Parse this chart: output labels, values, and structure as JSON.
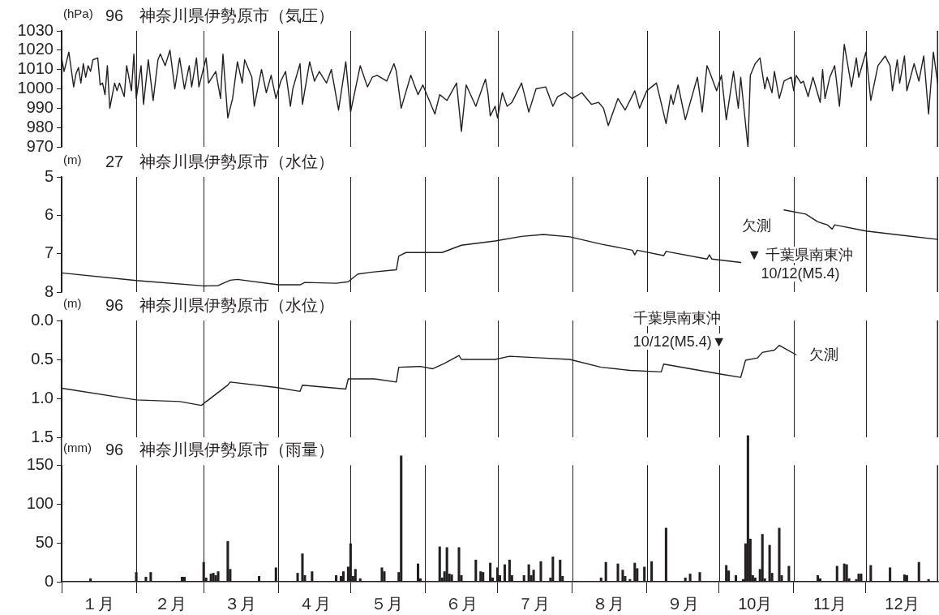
{
  "chart_data": [
    {
      "type": "line",
      "title": "96　神奈川県伊勢原市（気圧）",
      "ylabel": "(hPa)",
      "color": "#231f20",
      "x": [
        "--01-01",
        "--01-02",
        "--01-04",
        "--01-06",
        "--01-07",
        "--01-08",
        "--01-09",
        "--01-10",
        "--01-11",
        "--01-12",
        "--01-13",
        "--01-14",
        "--01-16",
        "--01-17",
        "--01-18",
        "--01-19",
        "--01-20",
        "--01-21",
        "--01-23",
        "--01-24",
        "--01-25",
        "--01-27",
        "--01-28",
        "--01-30",
        "--01-31",
        "--02-01",
        "--02-03",
        "--02-04",
        "--02-06",
        "--02-08",
        "--02-10",
        "--02-11",
        "--02-13",
        "--02-15",
        "--02-17",
        "--02-19",
        "--02-21",
        "--02-23",
        "--02-24",
        "--02-26",
        "--02-27",
        "--03-02",
        "--03-03",
        "--03-06",
        "--03-08",
        "--03-09",
        "--03-11",
        "--03-13",
        "--03-15",
        "--03-17",
        "--03-18",
        "--03-21",
        "--03-22",
        "--03-25",
        "--03-27",
        "--03-29",
        "--03-31",
        "--04-02",
        "--04-04",
        "--04-06",
        "--04-07",
        "--04-10",
        "--04-11",
        "--04-14",
        "--04-16",
        "--04-18",
        "--04-21",
        "--04-23",
        "--04-26",
        "--04-29",
        "--05-01",
        "--05-05",
        "--05-08",
        "--05-10",
        "--05-12",
        "--05-16",
        "--05-19",
        "--05-20",
        "--05-22",
        "--05-26",
        "--05-29",
        "--05-31",
        "--06-05",
        "--06-07",
        "--06-10",
        "--06-14",
        "--06-16",
        "--06-18",
        "--06-22",
        "--06-26",
        "--06-27",
        "--06-28",
        "--06-30",
        "--07-01",
        "--07-03",
        "--07-05",
        "--07-07",
        "--07-11",
        "--07-14",
        "--07-17",
        "--07-21",
        "--07-24",
        "--07-26",
        "--07-29",
        "--08-01",
        "--08-05",
        "--08-09",
        "--08-12",
        "--08-14",
        "--08-16",
        "--08-20",
        "--08-23",
        "--08-27",
        "--08-29",
        "--09-01",
        "--09-05",
        "--09-09",
        "--09-11",
        "--09-12",
        "--09-14",
        "--09-17",
        "--09-22",
        "--09-24",
        "--09-26",
        "--09-27",
        "--09-30",
        "--10-02",
        "--10-04",
        "--10-07",
        "--10-09",
        "--10-10",
        "--10-13",
        "--10-14",
        "--10-16",
        "--10-18",
        "--10-20",
        "--10-21",
        "--10-23",
        "--10-24",
        "--10-26",
        "--10-28",
        "--10-31",
        "--11-01",
        "--11-02",
        "--11-04",
        "--11-05",
        "--11-07",
        "--11-09",
        "--11-12",
        "--11-13",
        "--11-14",
        "--11-16",
        "--11-18",
        "--11-20",
        "--11-22",
        "--11-25",
        "--11-27",
        "--11-28",
        "--12-01",
        "--12-03",
        "--12-06",
        "--12-09",
        "--12-11",
        "--12-12",
        "--12-14",
        "--12-15",
        "--12-17",
        "--12-18",
        "--12-21",
        "--12-23",
        "--12-25",
        "--12-27",
        "--12-29",
        "--12-31"
      ],
      "values": [
        1016,
        1009,
        1019,
        1001,
        1008,
        1011,
        1003,
        1013,
        1006,
        1012,
        1009,
        1015,
        1016,
        1002,
        1003,
        997,
        1012,
        990,
        1003,
        999,
        1003,
        996,
        1012,
        999,
        1018,
        995,
        1012,
        992,
        1015,
        994,
        1015,
        1018,
        1012,
        1020,
        1000,
        1016,
        1000,
        1012,
        1001,
        1016,
        1001,
        1016,
        1003,
        1009,
        995,
        1018,
        985,
        995,
        1014,
        1003,
        1015,
        1006,
        991,
        1010,
        998,
        1007,
        995,
        1004,
        1009,
        991,
        1000,
        1013,
        992,
        1014,
        1004,
        1009,
        1003,
        1010,
        989,
        1014,
        988,
        1012,
        1001,
        1006,
        1007,
        1004,
        1013,
        1009,
        990,
        1007,
        997,
        1002,
        987,
        997,
        994,
        1003,
        978,
        1002,
        991,
        1005,
        998,
        986,
        991,
        985,
        998,
        991,
        993,
        1003,
        988,
        1000,
        1001,
        991,
        996,
        998,
        995,
        998,
        992,
        993,
        990,
        981,
        995,
        989,
        999,
        990,
        999,
        1003,
        982,
        997,
        992,
        1002,
        984,
        1006,
        988,
        1012,
        1009,
        999,
        1007,
        984,
        1009,
        990,
        1006,
        970,
        1007,
        1013,
        1016,
        1000,
        1006,
        998,
        1009,
        995,
        1004,
        1006,
        999,
        1007,
        1003,
        1004,
        996,
        1006,
        993,
        1010,
        995,
        1006,
        1012,
        991,
        1023,
        1001,
        1016,
        1006,
        1019,
        994,
        1012,
        1017,
        1012,
        999,
        1015,
        1003,
        1017,
        999,
        1013,
        1004,
        1017,
        987,
        1019,
        1001
      ],
      "xlim": [
        "--01-01",
        "--12-31"
      ],
      "xticks": [
        {
          "value": "--01-01",
          "label": null
        },
        {
          "value": "--02-01",
          "label": null
        },
        {
          "value": "--03-01",
          "label": null
        },
        {
          "value": "--04-01",
          "label": null
        },
        {
          "value": "--05-01",
          "label": null
        },
        {
          "value": "--06-01",
          "label": null
        },
        {
          "value": "--07-01",
          "label": null
        },
        {
          "value": "--08-01",
          "label": null
        },
        {
          "value": "--09-01",
          "label": null
        },
        {
          "value": "--10-01",
          "label": null
        },
        {
          "value": "--11-01",
          "label": null
        },
        {
          "value": "--12-01",
          "label": null
        }
      ],
      "ylim": [
        970,
        1030
      ],
      "yticks": [
        970,
        980,
        990,
        1000,
        1010,
        1020,
        1030
      ],
      "grid": "x",
      "tick_labels": "y"
    },
    {
      "type": "line",
      "title": "27　神奈川県伊勢原市（水位）",
      "ylabel": "(m)",
      "color": "#231f20",
      "x": [
        "--01-01",
        "--02-01",
        "--03-01",
        "--03-07",
        "--03-12",
        "--03-15",
        "--04-01",
        "--04-10",
        "--04-12",
        "--04-25",
        "--04-30",
        "--05-04",
        "--05-10",
        "--05-20",
        "--05-21",
        "--05-24",
        "--06-08",
        "--06-16",
        "--06-30",
        "--07-11",
        "--07-20",
        "--07-31",
        "--08-13",
        "--08-26",
        "--08-27",
        "--08-28",
        "--09-08",
        "--09-09",
        "--09-26",
        "--09-27",
        "--09-28",
        "--10-10",
        "--10-19",
        "--10-28",
        "--11-06",
        "--11-11",
        "--11-15",
        "--11-17",
        "--11-18",
        "--12-01",
        "--12-16",
        "--12-31"
      ],
      "values": [
        7.5,
        7.7,
        7.84,
        7.83,
        7.69,
        7.67,
        7.81,
        7.81,
        7.75,
        7.77,
        7.73,
        7.53,
        7.48,
        7.42,
        7.06,
        6.97,
        6.97,
        6.78,
        6.67,
        6.55,
        6.5,
        6.56,
        6.75,
        6.91,
        7.03,
        6.91,
        7.05,
        6.94,
        7.14,
        7.03,
        7.14,
        7.23,
        null,
        5.86,
        5.97,
        6.17,
        6.25,
        6.36,
        6.25,
        6.41,
        6.52,
        6.63
      ],
      "xlim": [
        "--01-01",
        "--12-31"
      ],
      "xticks": [
        {
          "value": "--01-01",
          "label": null
        },
        {
          "value": "--02-01",
          "label": null
        },
        {
          "value": "--03-01",
          "label": null
        },
        {
          "value": "--04-01",
          "label": null
        },
        {
          "value": "--05-01",
          "label": null
        },
        {
          "value": "--06-01",
          "label": null
        },
        {
          "value": "--07-01",
          "label": null
        },
        {
          "value": "--08-01",
          "label": null
        },
        {
          "value": "--09-01",
          "label": null
        },
        {
          "value": "--10-01",
          "label": null
        },
        {
          "value": "--11-01",
          "label": null
        },
        {
          "value": "--12-01",
          "label": null
        }
      ],
      "ylim": [
        8,
        5
      ],
      "yticks": [
        5,
        6,
        7,
        8
      ],
      "grid": "x",
      "tick_labels": "y",
      "annotations": [
        "欠測",
        "▼ 千葉県南東沖",
        "10/12(M5.4)"
      ]
    },
    {
      "type": "line",
      "title": "96　神奈川県伊勢原市（水位）",
      "ylabel": "(m)",
      "color": "#231f20",
      "x": [
        "--01-01",
        "--02-01",
        "--02-19",
        "--02-28",
        "--03-11",
        "--03-12",
        "--03-31",
        "--04-10",
        "--04-11",
        "--04-29",
        "--04-30",
        "--05-11",
        "--05-20",
        "--05-21",
        "--05-30",
        "--06-04",
        "--06-09",
        "--06-15",
        "--06-16",
        "--06-30",
        "--07-06",
        "--07-19",
        "--07-31",
        "--08-13",
        "--08-25",
        "--09-07",
        "--09-08",
        "--09-19",
        "--10-02",
        "--10-10",
        "--10-12",
        "--10-17",
        "--10-19",
        "--10-24",
        "--10-26",
        "--10-29",
        "--11-02"
      ],
      "values": [
        0.87,
        1.02,
        1.04,
        1.09,
        0.83,
        0.79,
        0.86,
        0.91,
        0.83,
        0.88,
        0.75,
        0.75,
        0.79,
        0.6,
        0.59,
        0.62,
        0.55,
        0.45,
        0.5,
        0.5,
        0.46,
        0.48,
        0.5,
        0.6,
        0.64,
        0.66,
        0.56,
        0.62,
        0.69,
        0.73,
        0.51,
        0.48,
        0.41,
        0.38,
        0.32,
        0.37,
        0.44
      ],
      "xlim": [
        "--01-01",
        "--12-31"
      ],
      "xticks": [
        {
          "value": "--01-01",
          "label": null
        },
        {
          "value": "--02-01",
          "label": null
        },
        {
          "value": "--03-01",
          "label": null
        },
        {
          "value": "--04-01",
          "label": null
        },
        {
          "value": "--05-01",
          "label": null
        },
        {
          "value": "--06-01",
          "label": null
        },
        {
          "value": "--07-01",
          "label": null
        },
        {
          "value": "--08-01",
          "label": null
        },
        {
          "value": "--09-01",
          "label": null
        },
        {
          "value": "--10-01",
          "label": null
        },
        {
          "value": "--11-01",
          "label": null
        },
        {
          "value": "--12-01",
          "label": null
        }
      ],
      "ylim": [
        1.5,
        0
      ],
      "yticks": [
        {
          "value": 0,
          "label": "0.0"
        },
        {
          "value": 0.5,
          "label": "0.5"
        },
        {
          "value": 1,
          "label": "1.0"
        },
        {
          "value": 1.5,
          "label": "1.5"
        }
      ],
      "grid": "x",
      "tick_labels": "y",
      "annotations": [
        "千葉県南東沖",
        "10/12(M5.4)▼",
        "欠測"
      ]
    },
    {
      "type": "bar",
      "title": "96　神奈川県伊勢原市（雨量）",
      "ylabel": "(mm)",
      "color": "#231f20",
      "x": [
        "--01-13",
        "--02-01",
        "--02-05",
        "--02-07",
        "--02-20",
        "--02-21",
        "--03-01",
        "--03-02",
        "--03-04",
        "--03-05",
        "--03-06",
        "--03-07",
        "--03-11",
        "--03-12",
        "--03-24",
        "--03-31",
        "--04-09",
        "--04-11",
        "--04-12",
        "--04-15",
        "--04-25",
        "--04-27",
        "--04-28",
        "--04-30",
        "--05-01",
        "--05-02",
        "--05-03",
        "--05-05",
        "--05-14",
        "--05-15",
        "--05-21",
        "--05-22",
        "--05-29",
        "--05-30",
        "--06-07",
        "--06-08",
        "--06-09",
        "--06-10",
        "--06-11",
        "--06-12",
        "--06-15",
        "--06-16",
        "--06-22",
        "--06-24",
        "--06-25",
        "--06-28",
        "--06-29",
        "--07-01",
        "--07-02",
        "--07-04",
        "--07-06",
        "--07-07",
        "--07-12",
        "--07-14",
        "--07-15",
        "--07-16",
        "--07-19",
        "--07-23",
        "--07-24",
        "--07-27",
        "--07-28",
        "--08-13",
        "--08-15",
        "--08-20",
        "--08-22",
        "--08-23",
        "--08-25",
        "--08-27",
        "--08-28",
        "--08-31",
        "--09-03",
        "--09-09",
        "--09-17",
        "--09-19",
        "--09-23",
        "--10-04",
        "--10-05",
        "--10-08",
        "--10-11",
        "--10-12",
        "--10-13",
        "--10-14",
        "--10-15",
        "--10-16",
        "--10-18",
        "--10-19",
        "--10-20",
        "--10-22",
        "--10-23",
        "--10-26",
        "--10-27",
        "--10-30",
        "--11-11",
        "--11-12",
        "--11-19",
        "--11-22",
        "--11-23",
        "--11-24",
        "--11-27",
        "--11-28",
        "--11-29",
        "--12-03",
        "--12-11",
        "--12-17",
        "--12-18",
        "--12-23",
        "--12-27"
      ],
      "values": [
        4,
        12,
        6,
        12,
        6,
        6,
        25,
        5,
        10,
        11,
        8,
        13,
        52,
        16,
        7,
        18,
        11,
        36,
        8,
        13,
        8,
        7,
        13,
        19,
        49,
        7,
        16,
        4,
        18,
        13,
        12,
        162,
        23,
        4,
        45,
        5,
        13,
        44,
        10,
        9,
        44,
        8,
        28,
        13,
        12,
        24,
        5,
        18,
        8,
        22,
        28,
        8,
        8,
        22,
        8,
        15,
        26,
        5,
        32,
        28,
        7,
        5,
        25,
        23,
        15,
        7,
        3,
        24,
        17,
        19,
        26,
        69,
        5,
        10,
        12,
        21,
        14,
        8,
        3,
        49,
        188,
        55,
        8,
        5,
        16,
        61,
        4,
        47,
        11,
        69,
        8,
        20,
        8,
        4,
        20,
        23,
        22,
        4,
        3,
        10,
        10,
        21,
        18,
        9,
        8,
        25,
        3
      ],
      "xlim": [
        "--01-01",
        "--12-31"
      ],
      "xticks": [
        {
          "value": "--01-01",
          "label": null
        },
        {
          "value": "--01-16",
          "label": "１月"
        },
        {
          "value": "--02-01",
          "label": null
        },
        {
          "value": "--02-15",
          "label": "２月"
        },
        {
          "value": "--03-01",
          "label": null
        },
        {
          "value": "--03-16",
          "label": "３月"
        },
        {
          "value": "--04-01",
          "label": null
        },
        {
          "value": "--04-16",
          "label": "４月"
        },
        {
          "value": "--05-01",
          "label": null
        },
        {
          "value": "--05-16",
          "label": "５月"
        },
        {
          "value": "--06-01",
          "label": null
        },
        {
          "value": "--06-16",
          "label": "６月"
        },
        {
          "value": "--07-01",
          "label": null
        },
        {
          "value": "--07-16",
          "label": "７月"
        },
        {
          "value": "--08-01",
          "label": null
        },
        {
          "value": "--08-16",
          "label": "８月"
        },
        {
          "value": "--09-01",
          "label": null
        },
        {
          "value": "--09-16",
          "label": "９月"
        },
        {
          "value": "--10-01",
          "label": null
        },
        {
          "value": "--10-16",
          "label": "10月"
        },
        {
          "value": "--11-01",
          "label": null
        },
        {
          "value": "--11-16",
          "label": "11月"
        },
        {
          "value": "--12-01",
          "label": null
        },
        {
          "value": "--12-16",
          "label": "12月"
        }
      ],
      "ylim": [
        0,
        190
      ],
      "yticks": [
        0,
        50,
        100,
        150
      ],
      "grid": "x"
    }
  ]
}
